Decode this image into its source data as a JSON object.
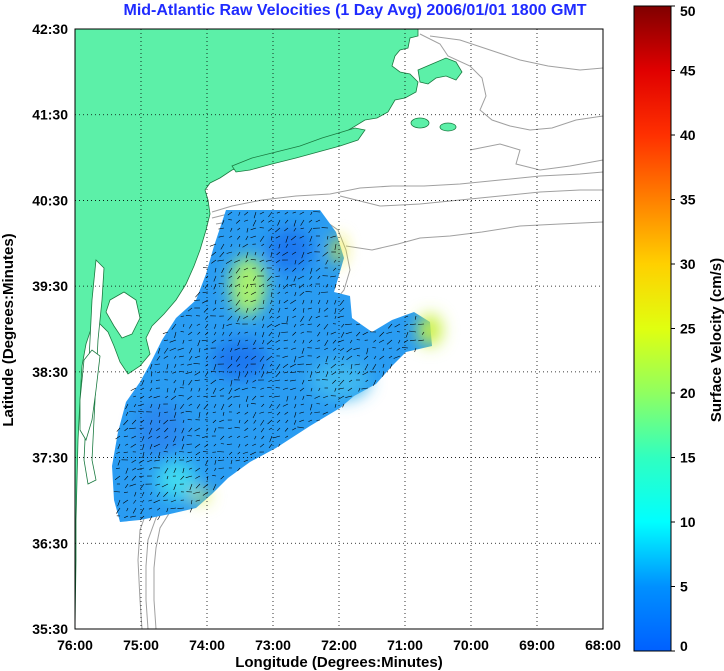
{
  "title": "Mid-Atlantic Raw Velocities (1 Day Avg) 2006/01/01 1800 GMT",
  "map": {
    "xlabel": "Longitude (Degrees:Minutes)",
    "ylabel": "Latitude (Degrees:Minutes)",
    "lon_range": [
      -76,
      -68
    ],
    "lat_range": [
      35.5,
      42.5
    ],
    "lon_ticks": [
      "76:00",
      "75:00",
      "74:00",
      "73:00",
      "72:00",
      "71:00",
      "70:00",
      "69:00",
      "68:00"
    ],
    "lat_ticks": [
      "35:30",
      "36:30",
      "37:30",
      "38:30",
      "39:30",
      "40:30",
      "41:30",
      "42:30"
    ],
    "grid": "dotted",
    "land_color": "#5cf0a8",
    "water_color": "#ffffff",
    "bathymetry_color": "#a0a0a0"
  },
  "colorbar": {
    "label": "Surface Velocity (cm/s)",
    "min": 0,
    "max": 50,
    "ticks": [
      "0",
      "5",
      "10",
      "15",
      "20",
      "25",
      "30",
      "35",
      "40",
      "45",
      "50"
    ],
    "colormap": "jet"
  },
  "velocity_field": {
    "dominant_speed_range_cms": [
      3,
      12
    ],
    "peak_speed_cms": 25,
    "arrow_color": "#000000"
  }
}
